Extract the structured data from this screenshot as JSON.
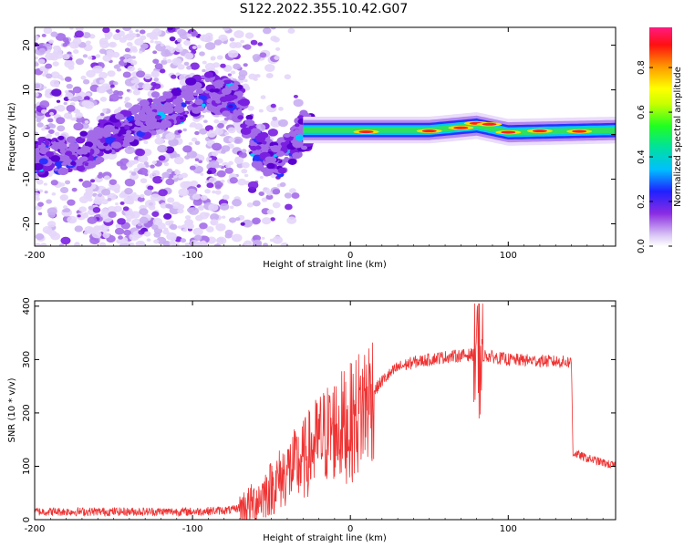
{
  "title": "S122.2022.355.10.42.G07",
  "chart_data": [
    {
      "type": "heatmap",
      "title": "S122.2022.355.10.42.G07",
      "xlabel": "Height of straight line (km)",
      "ylabel": "Frequency (Hz)",
      "xlim": [
        -200,
        168
      ],
      "ylim": [
        -25,
        24
      ],
      "xticks": [
        -200,
        -100,
        0,
        100
      ],
      "yticks": [
        -20,
        -10,
        0,
        10,
        20
      ],
      "colorbar": {
        "label": "Normalized spectral amplitude",
        "range": [
          0,
          0.98
        ],
        "ticks": [
          "0.0",
          "0.2",
          "0.4",
          "0.6",
          "0.8"
        ]
      },
      "description_points": [
        {
          "x": -200,
          "y": -5
        },
        {
          "x": -170,
          "y": -4
        },
        {
          "x": -150,
          "y": 0
        },
        {
          "x": -120,
          "y": 5
        },
        {
          "x": -90,
          "y": 10
        },
        {
          "x": -70,
          "y": 7
        },
        {
          "x": -60,
          "y": -3
        },
        {
          "x": -45,
          "y": -6
        },
        {
          "x": -30,
          "y": 1
        },
        {
          "x": 0,
          "y": 1
        },
        {
          "x": 50,
          "y": 1
        },
        {
          "x": 80,
          "y": 2
        },
        {
          "x": 100,
          "y": 0.5
        },
        {
          "x": 168,
          "y": 1
        }
      ]
    },
    {
      "type": "line",
      "xlabel": "Height of straight line (km)",
      "ylabel": "SNR (10 * v/v)",
      "xlim": [
        -200,
        168
      ],
      "ylim": [
        0,
        410
      ],
      "xticks": [
        -200,
        -100,
        0,
        100
      ],
      "yticks": [
        0,
        100,
        200,
        300,
        400
      ],
      "color": "#ee3333",
      "trend": [
        {
          "x": -200,
          "y": 15
        },
        {
          "x": -100,
          "y": 15
        },
        {
          "x": -75,
          "y": 18
        },
        {
          "x": -62,
          "y": 30
        },
        {
          "x": -50,
          "y": 60
        },
        {
          "x": -40,
          "y": 90
        },
        {
          "x": -30,
          "y": 110
        },
        {
          "x": -20,
          "y": 150
        },
        {
          "x": -10,
          "y": 170
        },
        {
          "x": 0,
          "y": 180
        },
        {
          "x": 10,
          "y": 220
        },
        {
          "x": 20,
          "y": 260
        },
        {
          "x": 30,
          "y": 285
        },
        {
          "x": 40,
          "y": 295
        },
        {
          "x": 60,
          "y": 305
        },
        {
          "x": 80,
          "y": 310
        },
        {
          "x": 100,
          "y": 300
        },
        {
          "x": 140,
          "y": 295
        },
        {
          "x": 141,
          "y": 125
        },
        {
          "x": 150,
          "y": 115
        },
        {
          "x": 168,
          "y": 100
        }
      ]
    }
  ]
}
